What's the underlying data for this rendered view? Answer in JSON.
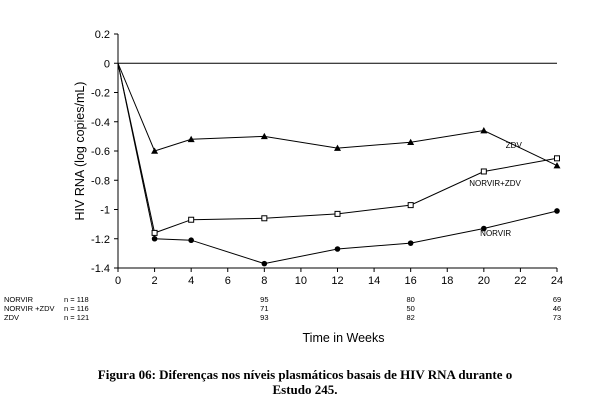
{
  "chart_data": {
    "type": "line",
    "title": "",
    "xlabel": "Time in Weeks",
    "ylabel": "HIV RNA (log copies/mL)",
    "xlim": [
      0,
      24
    ],
    "ylim": [
      -1.4,
      0.2
    ],
    "xticks": [
      "0",
      "2",
      "4",
      "6",
      "8",
      "10",
      "12",
      "14",
      "16",
      "18",
      "20",
      "22",
      "24"
    ],
    "yticks": [
      "0.2",
      "0",
      "-0.2",
      "-0.4",
      "-0.6",
      "-0.8",
      "-1",
      "-1.2",
      "-1.4"
    ],
    "grid": false,
    "series": [
      {
        "name": "ZDV",
        "marker": "triangle",
        "x": [
          0,
          2,
          4,
          8,
          12,
          16,
          20,
          24
        ],
        "y": [
          0,
          -0.6,
          -0.52,
          -0.5,
          -0.58,
          -0.54,
          -0.46,
          -0.7
        ]
      },
      {
        "name": "NORVIR+ZDV",
        "marker": "open-square",
        "x": [
          0,
          2,
          4,
          8,
          12,
          16,
          20,
          24
        ],
        "y": [
          0,
          -1.16,
          -1.07,
          -1.06,
          -1.03,
          -0.97,
          -0.74,
          -0.65
        ]
      },
      {
        "name": "NORVIR",
        "marker": "filled-circle",
        "x": [
          0,
          2,
          4,
          8,
          12,
          16,
          20,
          24
        ],
        "y": [
          0,
          -1.2,
          -1.21,
          -1.37,
          -1.27,
          -1.23,
          -1.13,
          -1.01
        ]
      }
    ],
    "patient_counts": [
      {
        "label": "NORVIR",
        "n": "n = 118",
        "values": [
          {
            "x": 8,
            "v": "95"
          },
          {
            "x": 16,
            "v": "80"
          },
          {
            "x": 24,
            "v": "69"
          }
        ]
      },
      {
        "label": "NORVIR +ZDV",
        "n": "n = 116",
        "values": [
          {
            "x": 8,
            "v": "71"
          },
          {
            "x": 16,
            "v": "50"
          },
          {
            "x": 24,
            "v": "46"
          }
        ]
      },
      {
        "label": "ZDV",
        "n": "n = 121",
        "values": [
          {
            "x": 8,
            "v": "93"
          },
          {
            "x": 16,
            "v": "82"
          },
          {
            "x": 24,
            "v": "73"
          }
        ]
      }
    ]
  },
  "caption": {
    "line1": "Figura 06: Diferenças nos níveis plasmáticos basais de HIV RNA durante o",
    "line2": "Estudo 245."
  }
}
